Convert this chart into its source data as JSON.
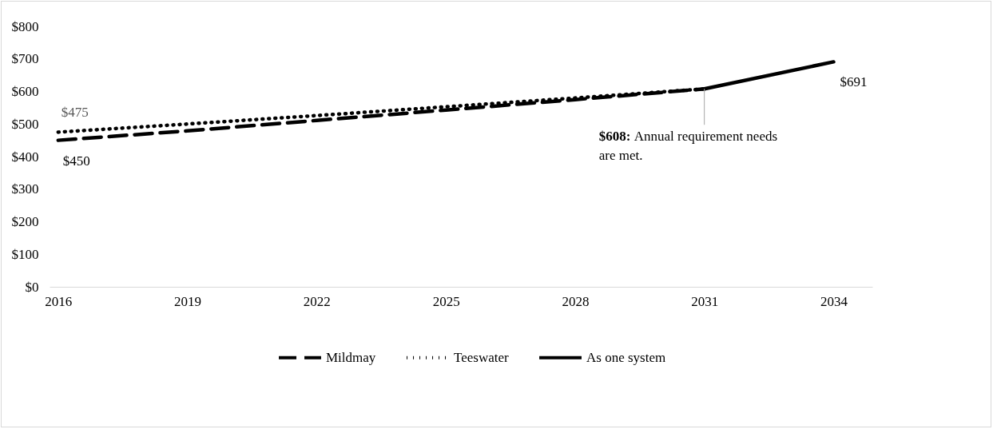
{
  "chart_data": {
    "type": "line",
    "x": [
      2016,
      2019,
      2022,
      2025,
      2028,
      2031
    ],
    "series": [
      {
        "name": "Mildmay",
        "color": "#000000",
        "line_style": "dashed",
        "values": [
          450,
          479,
          511,
          543,
          575,
          608
        ]
      },
      {
        "name": "Teeswater",
        "color": "#000000",
        "line_style": "dotted",
        "values": [
          475,
          500,
          526,
          553,
          580,
          608
        ]
      },
      {
        "name": "As one system",
        "color": "#000000",
        "line_style": "solid",
        "x": [
          2031,
          2034
        ],
        "values": [
          608,
          691
        ]
      }
    ],
    "xlim": [
      2015.8,
      2034.9
    ],
    "xticks": [
      2016,
      2019,
      2022,
      2025,
      2028,
      2031,
      2034
    ],
    "ylim": [
      0,
      800
    ],
    "yticks": [
      {
        "value": 0,
        "label": "$0"
      },
      {
        "value": 100,
        "label": "$100"
      },
      {
        "value": 200,
        "label": "$200"
      },
      {
        "value": 300,
        "label": "$300"
      },
      {
        "value": 400,
        "label": "$400"
      },
      {
        "value": 500,
        "label": "$500"
      },
      {
        "value": 600,
        "label": "$600"
      },
      {
        "value": 700,
        "label": "$700"
      },
      {
        "value": 800,
        "label": "$800"
      }
    ],
    "annotations": [
      {
        "text": "$475",
        "x": 2016,
        "y": 475
      },
      {
        "text": "$450",
        "x": 2016,
        "y": 450
      },
      {
        "text": "$691",
        "x": 2034,
        "y": 691
      },
      {
        "text": "$608: Annual requirement needs are met.",
        "x": 2031,
        "y": 608
      }
    ],
    "grid": false,
    "legend": "bottom",
    "marker": "none"
  }
}
